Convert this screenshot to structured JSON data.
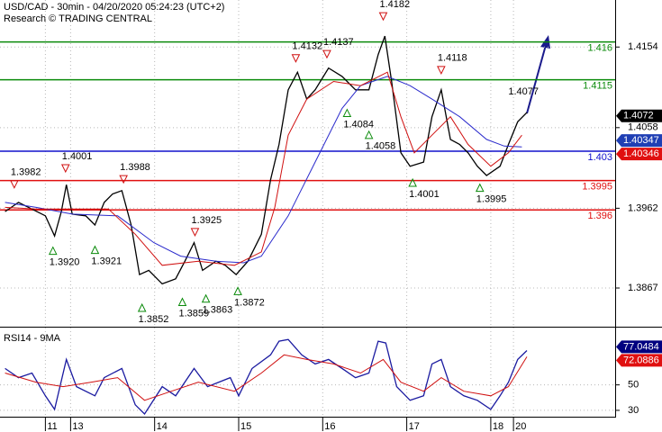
{
  "chart_data": [
    {
      "type": "line",
      "title": "USD/CAD - 30min - 04/20/2020 05:24:23 (UTC+2)",
      "subtitle": "Research © TRADING CENTRAL",
      "xlim": [
        -0.84,
        6.48
      ],
      "ylim": [
        1.3822,
        1.421
      ],
      "yticks": [
        1.4154,
        1.4058,
        1.3962,
        1.3867
      ],
      "grid": true,
      "series": [
        {
          "color": "#000000",
          "x": [
            -0.78,
            -0.62,
            -0.46,
            -0.3,
            -0.19,
            -0.11,
            -0.05,
            0.02,
            0.18,
            0.29,
            0.4,
            0.5,
            0.61,
            0.72,
            0.82,
            0.93,
            1.09,
            1.25,
            1.36,
            1.47,
            1.57,
            1.73,
            1.84,
            1.97,
            2.11,
            2.27,
            2.38,
            2.48,
            2.59,
            2.7,
            2.81,
            2.91,
            3.07,
            3.23,
            3.39,
            3.55,
            3.66,
            3.74,
            3.82,
            3.93,
            4.04,
            4.2,
            4.3,
            4.41,
            4.52,
            4.63,
            4.73,
            4.84,
            4.95,
            5.11,
            5.21,
            5.32,
            5.43
          ],
          "values": [
            1.3958,
            1.3969,
            1.3961,
            1.3953,
            1.3929,
            1.3958,
            1.399,
            1.3955,
            1.3953,
            1.3942,
            1.3969,
            1.3979,
            1.3983,
            1.3942,
            1.3883,
            1.3888,
            1.3872,
            1.3878,
            1.3899,
            1.3921,
            1.3888,
            1.3899,
            1.3894,
            1.3883,
            1.3899,
            1.3931,
            1.3996,
            1.4038,
            1.4103,
            1.4124,
            1.4092,
            1.4103,
            1.4129,
            1.4119,
            1.4103,
            1.4103,
            1.4145,
            1.4167,
            1.4113,
            1.4028,
            1.4012,
            1.4017,
            1.4071,
            1.4103,
            1.4044,
            1.4038,
            1.4028,
            1.4012,
            1.4001,
            1.4012,
            1.4038,
            1.4065,
            1.4076
          ]
        },
        {
          "color": "#2b2bcc",
          "x": [
            -0.78,
            -0.41,
            0.02,
            0.56,
            0.99,
            1.31,
            1.73,
            2.06,
            2.27,
            2.59,
            2.91,
            3.23,
            3.45,
            3.77,
            4.04,
            4.3,
            4.63,
            4.95,
            5.16,
            5.37
          ],
          "values": [
            1.3969,
            1.3963,
            1.3955,
            1.3953,
            1.3921,
            1.3905,
            1.3899,
            1.3897,
            1.3905,
            1.3953,
            1.4017,
            1.4081,
            1.4108,
            1.4119,
            1.4108,
            1.4092,
            1.4071,
            1.4044,
            1.4036,
            1.4035
          ]
        },
        {
          "color": "#d01010",
          "x": [
            -0.78,
            -0.41,
            0.02,
            0.45,
            0.77,
            1.09,
            1.52,
            1.95,
            2.27,
            2.43,
            2.59,
            2.81,
            3.13,
            3.45,
            3.77,
            3.93,
            4.09,
            4.3,
            4.52,
            4.73,
            5.0,
            5.21,
            5.37
          ],
          "values": [
            1.3963,
            1.3961,
            1.3961,
            1.3961,
            1.3931,
            1.3894,
            1.3899,
            1.3894,
            1.391,
            1.3963,
            1.4049,
            1.4092,
            1.4113,
            1.4108,
            1.4124,
            1.4071,
            1.4028,
            1.4049,
            1.4071,
            1.4038,
            1.4012,
            1.4028,
            1.4049
          ]
        }
      ],
      "levels": [
        {
          "value": 1.416,
          "color": "#0a8a0a"
        },
        {
          "value": 1.4115,
          "color": "#0a8a0a"
        },
        {
          "value": 1.403,
          "color": "#1010cc"
        },
        {
          "value": 1.3995,
          "color": "#e01010"
        },
        {
          "value": 1.396,
          "color": "#e01010"
        }
      ],
      "annotations": [
        {
          "x": -0.67,
          "value": 1.3982,
          "kind": "high"
        },
        {
          "x": -0.06,
          "value": 1.4001,
          "kind": "high"
        },
        {
          "x": 0.63,
          "value": 1.3988,
          "kind": "high"
        },
        {
          "x": -0.21,
          "value": 1.392,
          "label": "1.3920",
          "kind": "low"
        },
        {
          "x": 0.29,
          "value": 1.3921,
          "kind": "low"
        },
        {
          "x": 1.48,
          "value": 1.3925,
          "kind": "high"
        },
        {
          "x": 0.85,
          "value": 1.3852,
          "kind": "low"
        },
        {
          "x": 1.33,
          "value": 1.3859,
          "kind": "low"
        },
        {
          "x": 1.61,
          "value": 1.3863,
          "kind": "low"
        },
        {
          "x": 1.99,
          "value": 1.3872,
          "kind": "low"
        },
        {
          "x": 2.68,
          "value": 1.4132,
          "kind": "high"
        },
        {
          "x": 3.05,
          "value": 1.4137,
          "kind": "high"
        },
        {
          "x": 3.72,
          "value": 1.4182,
          "kind": "high"
        },
        {
          "x": 3.29,
          "value": 1.4084,
          "kind": "low"
        },
        {
          "x": 3.55,
          "value": 1.4058,
          "kind": "low"
        },
        {
          "x": 4.41,
          "value": 1.4118,
          "kind": "high"
        },
        {
          "x": 5.38,
          "value": 1.4077,
          "kind": "text"
        },
        {
          "x": 4.07,
          "value": 1.4001,
          "kind": "low"
        },
        {
          "x": 4.87,
          "value": 1.3995,
          "kind": "low"
        }
      ],
      "price_labels": [
        {
          "value": 1.4072,
          "color": "#000000"
        },
        {
          "value": 1.40347,
          "color": "#1f3fb4"
        },
        {
          "value": 1.40346,
          "color": "#e01010"
        }
      ]
    },
    {
      "type": "line",
      "title": "RSI14 - 9MA",
      "xlim": [
        -0.84,
        6.48
      ],
      "ylim": [
        25,
        95
      ],
      "xticks": [
        {
          "value": -0.3,
          "label": "11"
        },
        {
          "value": 0,
          "label": "13"
        },
        {
          "value": 1,
          "label": "14"
        },
        {
          "value": 2,
          "label": "15"
        },
        {
          "value": 3,
          "label": "16"
        },
        {
          "value": 4,
          "label": "17"
        },
        {
          "value": 5,
          "label": "18"
        },
        {
          "value": 5.27,
          "label": "20"
        }
      ],
      "yticks": [
        50,
        30
      ],
      "grid": true,
      "series": [
        {
          "color": "#1a1aa0",
          "x": [
            -0.78,
            -0.62,
            -0.46,
            -0.3,
            -0.19,
            -0.05,
            0.07,
            0.29,
            0.4,
            0.61,
            0.77,
            0.88,
            1.09,
            1.25,
            1.47,
            1.63,
            1.9,
            2.0,
            2.16,
            2.38,
            2.48,
            2.59,
            2.75,
            2.91,
            3.07,
            3.23,
            3.39,
            3.55,
            3.66,
            3.75,
            3.88,
            4.04,
            4.2,
            4.3,
            4.41,
            4.52,
            4.68,
            4.84,
            5.0,
            5.11,
            5.21,
            5.32,
            5.43
          ],
          "values": [
            62.9,
            55.7,
            59.3,
            41.4,
            30.7,
            70,
            48.6,
            41.4,
            55.7,
            62.9,
            34.3,
            27.1,
            48.6,
            41.4,
            62.9,
            48.6,
            55.7,
            41.4,
            62.9,
            73.6,
            84.3,
            85.7,
            73.6,
            66.4,
            70,
            62.9,
            55.7,
            59.3,
            84.3,
            82.9,
            48.6,
            37.9,
            41.4,
            66.4,
            70,
            48.6,
            41.4,
            37.9,
            30.7,
            41.4,
            52.1,
            70,
            77.0
          ]
        },
        {
          "color": "#d01010",
          "x": [
            -0.78,
            -0.41,
            -0.09,
            0.24,
            0.56,
            0.88,
            1.2,
            1.52,
            1.95,
            2.27,
            2.54,
            2.81,
            3.13,
            3.45,
            3.72,
            3.93,
            4.2,
            4.41,
            4.68,
            5.0,
            5.21,
            5.43
          ],
          "values": [
            59.3,
            52.1,
            48.6,
            52.1,
            55.7,
            37.9,
            45,
            52.1,
            45,
            59.3,
            73.6,
            70,
            66.4,
            59.3,
            70,
            52.1,
            45,
            55.7,
            45,
            41.4,
            48.6,
            72.1
          ]
        }
      ],
      "price_labels": [
        {
          "value": 77.0484,
          "color": "#000080"
        },
        {
          "value": 72.0886,
          "color": "#e01010"
        }
      ]
    }
  ]
}
